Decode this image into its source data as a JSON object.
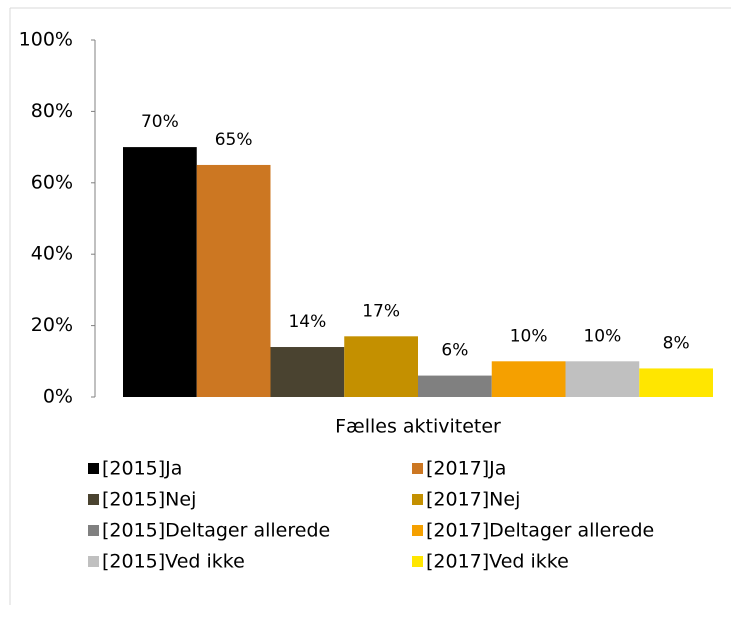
{
  "chart_data": {
    "type": "bar",
    "categories": [
      "Fælles aktiviteter"
    ],
    "series": [
      {
        "name": "[2015]Ja",
        "color": "#000000",
        "values": [
          70
        ],
        "value_labels": [
          "70%"
        ]
      },
      {
        "name": "[2017]Ja",
        "color": "#cc7722",
        "values": [
          65
        ],
        "value_labels": [
          "65%"
        ]
      },
      {
        "name": "[2015]Nej",
        "color": "#4a4330",
        "values": [
          14
        ],
        "value_labels": [
          "14%"
        ]
      },
      {
        "name": "[2017]Nej",
        "color": "#c49000",
        "values": [
          17
        ],
        "value_labels": [
          "17%"
        ]
      },
      {
        "name": "[2015]Deltager allerede",
        "color": "#808080",
        "values": [
          6
        ],
        "value_labels": [
          "6%"
        ]
      },
      {
        "name": "[2017]Deltager allerede",
        "color": "#f5a000",
        "values": [
          10
        ],
        "value_labels": [
          "10%"
        ]
      },
      {
        "name": "[2015]Ved ikke",
        "color": "#c0c0c0",
        "values": [
          10
        ],
        "value_labels": [
          "10%"
        ]
      },
      {
        "name": "[2017]Ved ikke",
        "color": "#ffe600",
        "values": [
          8
        ],
        "value_labels": [
          "8%"
        ]
      }
    ],
    "ylim": [
      0,
      100
    ],
    "yticks": [
      {
        "value": 0,
        "label": "0%"
      },
      {
        "value": 20,
        "label": "20%"
      },
      {
        "value": 40,
        "label": "40%"
      },
      {
        "value": 60,
        "label": "60%"
      },
      {
        "value": 80,
        "label": "80%"
      },
      {
        "value": 100,
        "label": "100%"
      }
    ],
    "grid": false,
    "legend": "bottom"
  }
}
